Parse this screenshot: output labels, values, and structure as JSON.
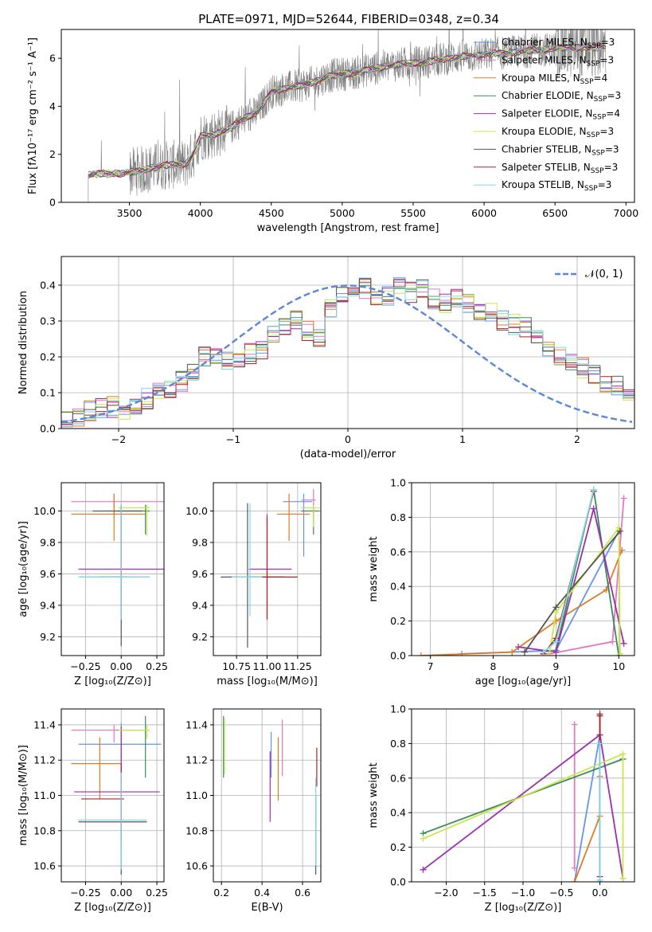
{
  "figure": {
    "title": "PLATE=0971, MJD=52644, FIBERID=0348, z=0.34",
    "series_colors": [
      "#6495ed",
      "#e377c2",
      "#e07b25",
      "#3a8a5a",
      "#9a2fb0",
      "#c8e84a",
      "#555555",
      "#b22222",
      "#7fd8e8"
    ],
    "normal_color": "#5b87d8"
  },
  "chart_data": [
    {
      "id": "spectrum",
      "type": "line",
      "xlabel": "wavelength [Angstrom, rest frame]",
      "ylabel": "Flux [fλ10⁻¹⁷ erg cm⁻² s⁻¹ A⁻¹]",
      "xlim": [
        3020,
        7060
      ],
      "ylim": [
        0,
        7.2
      ],
      "xticks": [
        3500,
        4000,
        4500,
        5000,
        5500,
        6000,
        6500,
        7000
      ],
      "yticks": [
        0,
        2,
        4,
        6
      ],
      "grid": false,
      "legend_position": "top-right",
      "series": [
        {
          "name": "Chabrier MILES, N",
          "sub": "SSP",
          "suffix": "=3"
        },
        {
          "name": "Salpeter MILES, N",
          "sub": "SSP",
          "suffix": "=3"
        },
        {
          "name": "Kroupa MILES, N",
          "sub": "SSP",
          "suffix": "=4"
        },
        {
          "name": "Chabrier ELODIE, N",
          "sub": "SSP",
          "suffix": "=3"
        },
        {
          "name": "Salpeter ELODIE, N",
          "sub": "SSP",
          "suffix": "=4"
        },
        {
          "name": "Kroupa ELODIE, N",
          "sub": "SSP",
          "suffix": "=3"
        },
        {
          "name": "Chabrier STELIB, N",
          "sub": "SSP",
          "suffix": "=3"
        },
        {
          "name": "Salpeter STELIB, N",
          "sub": "SSP",
          "suffix": "=3"
        },
        {
          "name": "Kroupa STELIB, N",
          "sub": "SSP",
          "suffix": "=3"
        }
      ],
      "continuum": {
        "x": [
          3210,
          3300,
          3450,
          3600,
          3750,
          3900,
          3950,
          4000,
          4100,
          4200,
          4300,
          4400,
          4500,
          4600,
          4700,
          4800,
          4900,
          5000,
          5100,
          5200,
          5300,
          5400,
          5500,
          5600,
          5700,
          5800,
          5900,
          6000,
          6100,
          6200,
          6300,
          6400,
          6500,
          6600,
          6700,
          6800,
          6860
        ],
        "y": [
          1.15,
          1.2,
          1.2,
          1.35,
          1.55,
          1.6,
          2.0,
          2.75,
          2.85,
          3.05,
          3.45,
          3.75,
          4.6,
          4.75,
          4.85,
          5.0,
          5.25,
          5.35,
          5.4,
          5.55,
          5.65,
          5.75,
          5.8,
          5.85,
          5.95,
          6.05,
          6.1,
          6.15,
          6.2,
          6.25,
          6.3,
          6.35,
          6.4,
          6.42,
          6.45,
          6.45,
          6.45
        ]
      }
    },
    {
      "id": "residuals",
      "type": "bar",
      "xlabel": "(data-model)/error",
      "ylabel": "Normed distribution",
      "xlim": [
        -2.5,
        2.5
      ],
      "ylim": [
        0,
        0.48
      ],
      "xticks": [
        -2,
        -1,
        0,
        1,
        2
      ],
      "yticks": [
        0.0,
        0.1,
        0.2,
        0.3,
        0.4
      ],
      "grid": true,
      "legend_position": "top-right",
      "legend": [
        "𝒩(0, 1)"
      ],
      "bin_width": 0.1,
      "bins_start": -2.5,
      "values": [
        0.025,
        0.03,
        0.05,
        0.06,
        0.06,
        0.05,
        0.07,
        0.085,
        0.1,
        0.11,
        0.13,
        0.15,
        0.2,
        0.21,
        0.19,
        0.2,
        0.21,
        0.22,
        0.27,
        0.29,
        0.3,
        0.27,
        0.25,
        0.33,
        0.38,
        0.4,
        0.39,
        0.37,
        0.37,
        0.4,
        0.38,
        0.39,
        0.36,
        0.35,
        0.36,
        0.35,
        0.33,
        0.32,
        0.3,
        0.29,
        0.28,
        0.25,
        0.22,
        0.2,
        0.18,
        0.17,
        0.15,
        0.12,
        0.12,
        0.1,
        0.09,
        0.08,
        0.07,
        0.06,
        0.065,
        0.06,
        0.05,
        0.045,
        0.03,
        0.02,
        0.025,
        0.02
      ]
    },
    {
      "id": "age_vs_Z",
      "type": "scatter",
      "xlabel": "Z [log₁₀(Z/Z⊙)]",
      "ylabel": "age  [log₁₀(age/yr)]",
      "xlim": [
        -0.42,
        0.3
      ],
      "ylim": [
        9.08,
        10.18
      ],
      "xticks": [
        -0.25,
        0.0,
        0.25
      ],
      "xticklabels": [
        "−0.25",
        "0.00",
        "0.25"
      ],
      "yticks": [
        9.2,
        9.4,
        9.6,
        9.8,
        10.0
      ],
      "grid": true,
      "crosses": [
        {
          "x": 0.0,
          "xerr": [
            0.3,
            0.2
          ],
          "y": 9.58,
          "yerr": [
            0.18,
            0.16
          ]
        },
        {
          "x": -0.05,
          "xerr": [
            0.3,
            0.35
          ],
          "y": 10.06,
          "yerr": [
            0.1,
            0.05
          ]
        },
        {
          "x": -0.05,
          "xerr": [
            0.3,
            0.22
          ],
          "y": 9.98,
          "yerr": [
            0.17,
            0.13
          ]
        },
        {
          "x": 0.17,
          "xerr": [
            0.2,
            0.03
          ],
          "y": 10.0,
          "yerr": [
            0.15,
            0.04
          ]
        },
        {
          "x": 0.0,
          "xerr": [
            0.3,
            0.33
          ],
          "y": 9.63,
          "yerr": [
            0.22,
            0.35
          ]
        },
        {
          "x": 0.18,
          "xerr": [
            0.2,
            0.02
          ],
          "y": 10.02,
          "yerr": [
            0.18,
            0.02
          ]
        },
        {
          "x": 0.0,
          "xerr": [
            0.2,
            0.15
          ],
          "y": 10.0,
          "yerr": [
            0.86,
            0.04
          ]
        },
        {
          "x": 0.0,
          "xerr": [
            0.15,
            0.05
          ],
          "y": 9.58,
          "yerr": [
            0.25,
            0.43
          ]
        },
        {
          "x": 0.0,
          "xerr": [
            0.3,
            0.2
          ],
          "y": 9.58,
          "yerr": [
            0.27,
            0.47
          ]
        }
      ]
    },
    {
      "id": "age_vs_mass",
      "type": "scatter",
      "xlabel": "mass [log₁₀(M/M⊙)]",
      "ylabel": "",
      "xlim": [
        10.56,
        11.44
      ],
      "ylim": [
        9.08,
        10.18
      ],
      "xticks": [
        10.75,
        11.0,
        11.25
      ],
      "xticklabels": [
        "10.75",
        "11.00",
        "11.25"
      ],
      "yticks": [
        9.2,
        9.4,
        9.6,
        9.8,
        10.0
      ],
      "grid": true,
      "crosses": [
        {
          "x": 11.3,
          "xerr": [
            0.17,
            0.07
          ],
          "y": 10.06,
          "yerr": [
            0.35,
            0.05
          ]
        },
        {
          "x": 11.38,
          "xerr": [
            0.1,
            0.02
          ],
          "y": 10.07,
          "yerr": [
            0.12,
            0.07
          ]
        },
        {
          "x": 11.18,
          "xerr": [
            0.1,
            0.17
          ],
          "y": 9.98,
          "yerr": [
            0.17,
            0.13
          ]
        },
        {
          "x": 11.38,
          "xerr": [
            0.1,
            0.05
          ],
          "y": 10.0,
          "yerr": [
            0.15,
            0.04
          ]
        },
        {
          "x": 11.0,
          "xerr": [
            0.15,
            0.2
          ],
          "y": 9.63,
          "yerr": [
            0.32,
            0.35
          ]
        },
        {
          "x": 11.38,
          "xerr": [
            0.1,
            0.05
          ],
          "y": 10.02,
          "yerr": [
            0.12,
            0.02
          ]
        },
        {
          "x": 10.84,
          "xerr": [
            0.22,
            0.3
          ],
          "y": 9.58,
          "yerr": [
            0.45,
            0.47
          ]
        },
        {
          "x": 11.0,
          "xerr": [
            0.15,
            0.25
          ],
          "y": 9.58,
          "yerr": [
            0.27,
            0.38
          ]
        },
        {
          "x": 10.86,
          "xerr": [
            0.15,
            0.1
          ],
          "y": 9.58,
          "yerr": [
            0.25,
            0.47
          ]
        }
      ]
    },
    {
      "id": "massweight_vs_age",
      "type": "line",
      "xlabel": "age  [log₁₀(age/yr)]",
      "ylabel": "mass weight",
      "xlim": [
        6.7,
        10.25
      ],
      "ylim": [
        0,
        1.0
      ],
      "xticks": [
        7,
        8,
        9,
        10
      ],
      "yticks": [
        0.0,
        0.2,
        0.4,
        0.6,
        0.8,
        1.0
      ],
      "grid": true,
      "lines": [
        {
          "x": [
            7.5,
            9.0,
            10.0
          ],
          "y": [
            0.01,
            0.03,
            0.72
          ]
        },
        {
          "x": [
            8.9,
            9.9,
            10.08
          ],
          "y": [
            0.01,
            0.08,
            0.91
          ]
        },
        {
          "x": [
            6.85,
            8.3,
            9.0,
            9.8,
            10.05
          ],
          "y": [
            0.0,
            0.02,
            0.2,
            0.38,
            0.61
          ]
        },
        {
          "x": [
            9.0,
            9.6,
            10.0
          ],
          "y": [
            0.03,
            0.96,
            0.0
          ]
        },
        {
          "x": [
            8.4,
            9.0,
            9.6,
            10.08
          ],
          "y": [
            0.05,
            0.02,
            0.85,
            0.07
          ]
        },
        {
          "x": [
            8.9,
            9.0,
            10.0,
            10.02
          ],
          "y": [
            0.02,
            0.25,
            0.74,
            0.01
          ]
        },
        {
          "x": [
            8.5,
            9.0,
            10.02
          ],
          "y": [
            0.02,
            0.28,
            0.72
          ]
        },
        {
          "x": [
            8.8,
            9.0,
            9.6
          ],
          "y": [
            0.01,
            0.1,
            0.95
          ]
        },
        {
          "x": [
            8.8,
            9.0,
            9.6
          ],
          "y": [
            0.02,
            0.08,
            0.96
          ]
        }
      ]
    },
    {
      "id": "mass_vs_Z",
      "type": "scatter",
      "xlabel": "Z [log₁₀(Z/Z⊙)]",
      "ylabel": "mass [log₁₀(M/M⊙)]",
      "xlim": [
        -0.42,
        0.3
      ],
      "ylim": [
        10.51,
        11.49
      ],
      "xticks": [
        -0.25,
        0.0,
        0.25
      ],
      "xticklabels": [
        "−0.25",
        "0.00",
        "0.25"
      ],
      "yticks": [
        10.6,
        10.8,
        11.0,
        11.2,
        11.4
      ],
      "grid": true,
      "crosses": [
        {
          "x": 0.0,
          "xerr": [
            0.3,
            0.28
          ],
          "y": 11.29,
          "yerr": [
            0.1,
            0.12
          ]
        },
        {
          "x": -0.05,
          "xerr": [
            0.3,
            0.25
          ],
          "y": 11.37,
          "yerr": [
            0.07,
            0.03
          ]
        },
        {
          "x": -0.15,
          "xerr": [
            0.2,
            0.15
          ],
          "y": 11.18,
          "yerr": [
            0.2,
            0.15
          ]
        },
        {
          "x": 0.17,
          "xerr": [
            0.2,
            0.02
          ],
          "y": 11.37,
          "yerr": [
            0.27,
            0.08
          ]
        },
        {
          "x": 0.0,
          "xerr": [
            0.33,
            0.27
          ],
          "y": 11.02,
          "yerr": [
            0.3,
            0.37
          ]
        },
        {
          "x": 0.18,
          "xerr": [
            0.2,
            0.02
          ],
          "y": 11.37,
          "yerr": [
            0.05,
            0.03
          ]
        },
        {
          "x": 0.0,
          "xerr": [
            0.3,
            0.18
          ],
          "y": 10.85,
          "yerr": [
            0.3,
            0.02
          ]
        },
        {
          "x": 0.0,
          "xerr": [
            0.28,
            0.02
          ],
          "y": 10.98,
          "yerr": [
            0.2,
            0.2
          ]
        },
        {
          "x": 0.0,
          "xerr": [
            0.3,
            0.18
          ],
          "y": 10.86,
          "yerr": [
            0.28,
            0.27
          ]
        }
      ]
    },
    {
      "id": "mass_vs_ebv",
      "type": "scatter",
      "xlabel": "E(B-V)",
      "ylabel": "",
      "xlim": [
        0.16,
        0.69
      ],
      "ylim": [
        10.51,
        11.49
      ],
      "xticks": [
        0.2,
        0.4,
        0.6
      ],
      "yticks": [
        10.6,
        10.8,
        11.0,
        11.2,
        11.4
      ],
      "grid": true,
      "crosses": [
        {
          "x": 0.445,
          "y": 11.2,
          "yerr": [
            0.1,
            0.16
          ]
        },
        {
          "x": 0.5,
          "y": 11.27,
          "yerr": [
            0.16,
            0.16
          ]
        },
        {
          "x": 0.48,
          "y": 11.15,
          "yerr": [
            0.18,
            0.18
          ]
        },
        {
          "x": 0.21,
          "y": 11.3,
          "yerr": [
            0.2,
            0.15
          ]
        },
        {
          "x": 0.44,
          "y": 11.05,
          "yerr": [
            0.2,
            0.2
          ]
        },
        {
          "x": 0.215,
          "y": 11.3,
          "yerr": [
            0.18,
            0.14
          ]
        },
        {
          "x": 0.665,
          "y": 10.7,
          "yerr": [
            0.15,
            0.3
          ]
        },
        {
          "x": 0.67,
          "y": 11.15,
          "yerr": [
            0.1,
            0.12
          ]
        },
        {
          "x": 0.665,
          "y": 10.9,
          "yerr": [
            0.3,
            0.2
          ]
        }
      ]
    },
    {
      "id": "massweight_vs_Z",
      "type": "line",
      "xlabel": "Z [log₁₀(Z/Z⊙)]",
      "ylabel": "mass weight",
      "xlim": [
        -2.45,
        0.45
      ],
      "ylim": [
        0,
        1.0
      ],
      "xticks": [
        -2.0,
        -1.5,
        -1.0,
        -0.5,
        0.0
      ],
      "xticklabels": [
        "−2.0",
        "−1.5",
        "−1.0",
        "−0.5",
        "0.0"
      ],
      "yticks": [
        0.0,
        0.2,
        0.4,
        0.6,
        0.8,
        1.0
      ],
      "grid": true,
      "lines": [
        {
          "x": [
            -0.33,
            0.0
          ],
          "y": [
            0.0,
            0.85
          ]
        },
        {
          "x": [
            -0.33,
            -0.33
          ],
          "y": [
            0.08,
            0.91
          ]
        },
        {
          "x": [
            -0.33,
            0.0,
            0.0
          ],
          "y": [
            0.0,
            0.38,
            0.61
          ]
        },
        {
          "x": [
            -2.3,
            0.3
          ],
          "y": [
            0.28,
            0.71
          ]
        },
        {
          "x": [
            -2.3,
            0.0,
            0.3
          ],
          "y": [
            0.07,
            0.85,
            0.02
          ]
        },
        {
          "x": [
            -2.3,
            0.3,
            0.3
          ],
          "y": [
            0.25,
            0.74,
            0.02
          ]
        },
        {
          "x": [
            0.0,
            0.0
          ],
          "y": [
            0.0,
            0.96
          ]
        },
        {
          "x": [
            0.0,
            0.0
          ],
          "y": [
            0.03,
            0.97
          ]
        },
        {
          "x": [
            0.0,
            0.0
          ],
          "y": [
            0.01,
            0.8
          ]
        }
      ]
    }
  ]
}
